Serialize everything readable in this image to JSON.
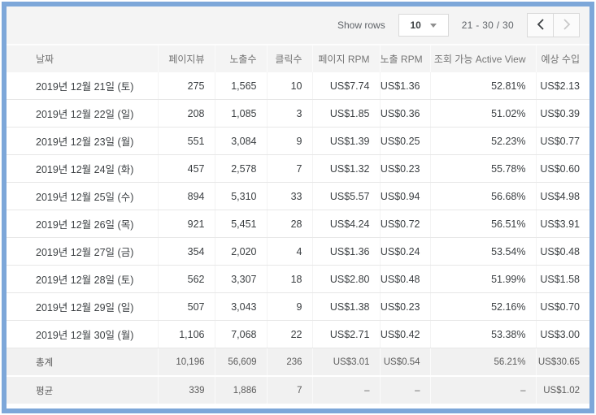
{
  "toolbar": {
    "show_rows_label": "Show rows",
    "rows_per_page": "10",
    "range_label": "21 - 30 / 30"
  },
  "pager": {
    "prev_icon": "chevron-left",
    "next_icon": "chevron-right",
    "prev_enabled": true,
    "next_enabled": false
  },
  "table": {
    "columns": [
      "날짜",
      "페이지뷰",
      "노출수",
      "클릭수",
      "페이지 RPM",
      "노출 RPM",
      "조회 가능 Active View",
      "예상 수입"
    ],
    "rows": [
      [
        "2019년 12월 21일 (토)",
        "275",
        "1,565",
        "10",
        "US$7.74",
        "US$1.36",
        "52.81%",
        "US$2.13"
      ],
      [
        "2019년 12월 22일 (일)",
        "208",
        "1,085",
        "3",
        "US$1.85",
        "US$0.36",
        "51.02%",
        "US$0.39"
      ],
      [
        "2019년 12월 23일 (월)",
        "551",
        "3,084",
        "9",
        "US$1.39",
        "US$0.25",
        "52.23%",
        "US$0.77"
      ],
      [
        "2019년 12월 24일 (화)",
        "457",
        "2,578",
        "7",
        "US$1.32",
        "US$0.23",
        "55.78%",
        "US$0.60"
      ],
      [
        "2019년 12월 25일 (수)",
        "894",
        "5,310",
        "33",
        "US$5.57",
        "US$0.94",
        "56.68%",
        "US$4.98"
      ],
      [
        "2019년 12월 26일 (목)",
        "921",
        "5,451",
        "28",
        "US$4.24",
        "US$0.72",
        "56.51%",
        "US$3.91"
      ],
      [
        "2019년 12월 27일 (금)",
        "354",
        "2,020",
        "4",
        "US$1.36",
        "US$0.24",
        "53.54%",
        "US$0.48"
      ],
      [
        "2019년 12월 28일 (토)",
        "562",
        "3,307",
        "18",
        "US$2.80",
        "US$0.48",
        "51.99%",
        "US$1.58"
      ],
      [
        "2019년 12월 29일 (일)",
        "507",
        "3,043",
        "9",
        "US$1.38",
        "US$0.23",
        "52.16%",
        "US$0.70"
      ],
      [
        "2019년 12월 30일 (월)",
        "1,106",
        "7,068",
        "22",
        "US$2.71",
        "US$0.42",
        "53.38%",
        "US$3.00"
      ]
    ],
    "summary_rows": [
      [
        "총계",
        "10,196",
        "56,609",
        "236",
        "US$3.01",
        "US$0.54",
        "56.21%",
        "US$30.65"
      ],
      [
        "평균",
        "339",
        "1,886",
        "7",
        "–",
        "–",
        "–",
        "US$1.02"
      ]
    ]
  },
  "colors": {
    "frame_border": "#7da7d9",
    "toolbar_bg": "#f4f4f4",
    "header_bg": "#f4f4f4",
    "summary_bg": "#f1f1f1",
    "header_text": "#757575",
    "body_text": "#3c4043",
    "enabled_chevron": "#3c4043",
    "disabled_chevron": "#c9c9c9"
  }
}
